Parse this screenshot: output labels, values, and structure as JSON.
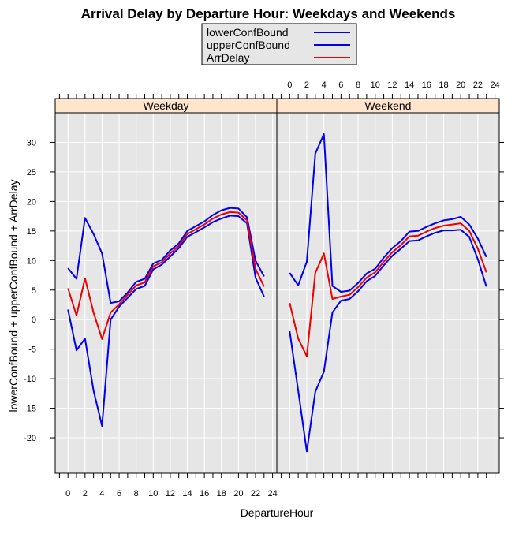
{
  "chart_data": {
    "type": "line",
    "title": "Arrival Delay by Departure Hour: Weekdays and Weekends",
    "xlabel": "DepartureHour",
    "ylabel": "lowerConfBound + upperConfBound + ArrDelay",
    "xlim": [
      -1.5,
      24.5
    ],
    "ylim": [
      -26,
      35
    ],
    "x_ticks": [
      0,
      2,
      4,
      6,
      8,
      10,
      12,
      14,
      16,
      18,
      20,
      22,
      24
    ],
    "y_ticks": [
      -20,
      -15,
      -10,
      -5,
      0,
      5,
      10,
      15,
      20,
      25,
      30
    ],
    "grid": true,
    "legend": {
      "position": "top",
      "entries": [
        {
          "name": "lowerConfBound",
          "color": "#0000ee"
        },
        {
          "name": "upperConfBound",
          "color": "#0000ee"
        },
        {
          "name": "ArrDelay",
          "color": "#ee0000"
        }
      ]
    },
    "panels": [
      {
        "name": "Weekday",
        "x": [
          0,
          1,
          2,
          3,
          4,
          5,
          6,
          7,
          8,
          9,
          10,
          11,
          12,
          13,
          14,
          15,
          16,
          17,
          18,
          19,
          20,
          21,
          22,
          23
        ],
        "series": [
          {
            "name": "lowerConfBound",
            "values": [
              1.7,
              -5.2,
              -3.2,
              -12,
              -18,
              0,
              2.2,
              3.7,
              5.2,
              5.7,
              8.5,
              9.3,
              10.7,
              12.1,
              14,
              14.8,
              15.6,
              16.5,
              17.1,
              17.6,
              17.5,
              16.3,
              7.1,
              3.9
            ]
          },
          {
            "name": "upperConfBound",
            "values": [
              8.7,
              6.9,
              17.2,
              14.5,
              11.2,
              2.8,
              3.1,
              4.6,
              6.4,
              6.9,
              9.5,
              10.1,
              11.7,
              12.9,
              15,
              15.8,
              16.6,
              17.7,
              18.5,
              18.9,
              18.8,
              17.3,
              10,
              7.3
            ]
          },
          {
            "name": "ArrDelay",
            "values": [
              5.3,
              0.7,
              7,
              1.2,
              -3.3,
              1.2,
              2.6,
              4.2,
              5.8,
              6.3,
              9,
              9.7,
              11.2,
              12.5,
              14.5,
              15.3,
              16.1,
              17.1,
              17.8,
              18.2,
              18.1,
              16.8,
              8.6,
              5.6
            ]
          }
        ]
      },
      {
        "name": "Weekend",
        "x": [
          0,
          1,
          2,
          3,
          4,
          5,
          6,
          7,
          8,
          9,
          10,
          11,
          12,
          13,
          14,
          15,
          16,
          17,
          18,
          19,
          20,
          21,
          22,
          23
        ],
        "series": [
          {
            "name": "lowerConfBound",
            "values": [
              -2,
              -12,
              -22.3,
              -12.2,
              -8.8,
              1.2,
              3.2,
              3.5,
              4.8,
              6.5,
              7.4,
              9.2,
              10.8,
              12,
              13.3,
              13.4,
              14.1,
              14.7,
              15.1,
              15.1,
              15.2,
              14,
              10.2,
              5.6
            ]
          },
          {
            "name": "upperConfBound",
            "values": [
              7.9,
              5.8,
              9.8,
              28.1,
              31.4,
              5.7,
              4.7,
              4.9,
              6.2,
              7.8,
              8.6,
              10.5,
              12.1,
              13.3,
              14.9,
              15,
              15.7,
              16.3,
              16.8,
              17,
              17.4,
              16.1,
              13.7,
              10.6
            ]
          },
          {
            "name": "ArrDelay",
            "values": [
              2.8,
              -3.2,
              -6.2,
              7.9,
              11.2,
              3.5,
              3.9,
              4.2,
              5.5,
              7.1,
              8,
              9.8,
              11.4,
              12.6,
              14.1,
              14.2,
              14.9,
              15.5,
              15.9,
              16.1,
              16.3,
              15,
              12,
              8
            ]
          }
        ]
      }
    ]
  },
  "colors": {
    "panel_bg": "#e6e6e6",
    "strip_bg": "#ffe5cc",
    "grid": "#ffffff",
    "series": {
      "lowerConfBound": "#0000ee",
      "upperConfBound": "#0000ee",
      "ArrDelay": "#ee0000"
    }
  }
}
